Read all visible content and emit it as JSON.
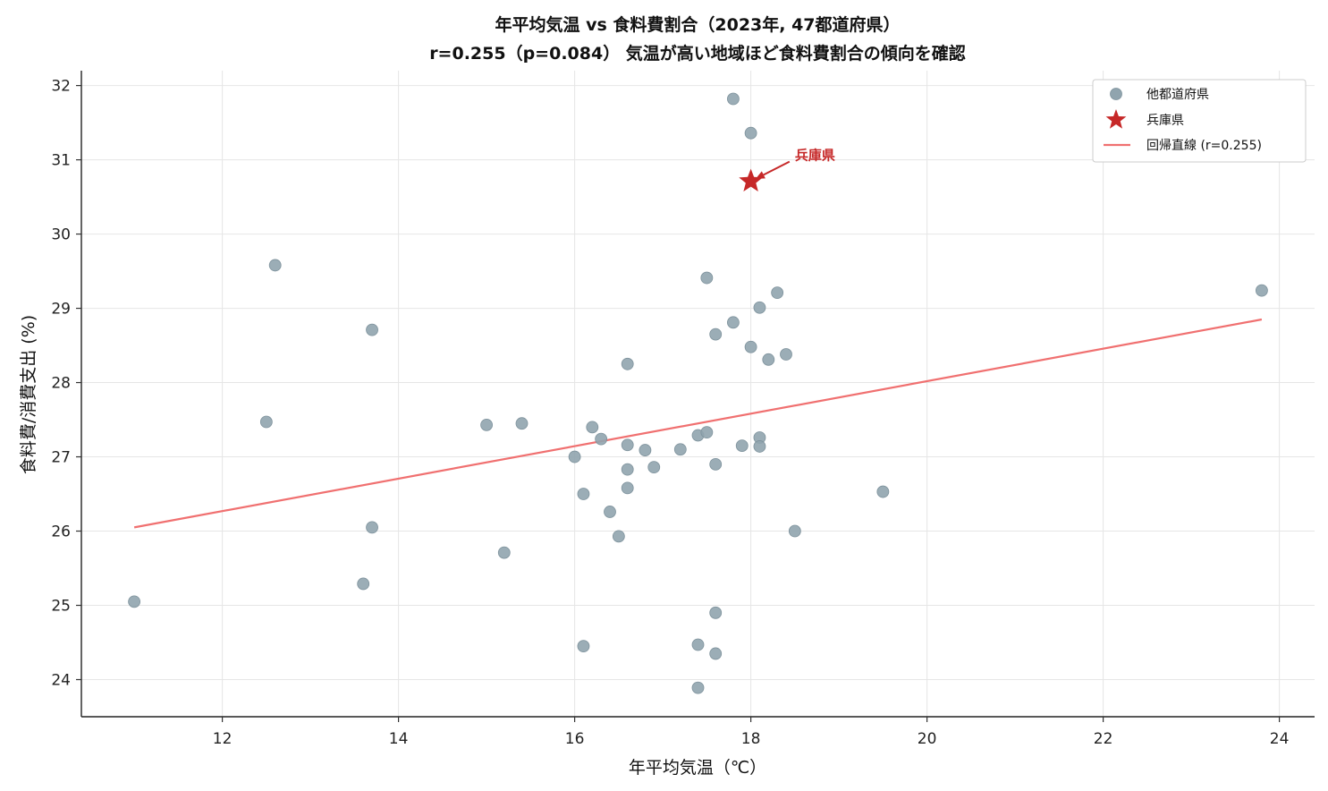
{
  "chart_data": {
    "type": "scatter",
    "title_line1": "年平均気温 vs 食料費割合（2023年, 47都道府県）",
    "title_line2": "r=0.255（p=0.084）    気温が高い地域ほど食料費割合の傾向を確認",
    "xlabel": "年平均気温（℃）",
    "ylabel": "食料費/消費支出 (%)",
    "xlim": [
      10.4,
      24.4
    ],
    "ylim": [
      23.5,
      32.2
    ],
    "xticks": [
      "12",
      "14",
      "16",
      "18",
      "20",
      "22",
      "24"
    ],
    "yticks": [
      "24",
      "25",
      "26",
      "27",
      "28",
      "29",
      "30",
      "31",
      "32"
    ],
    "grid": true,
    "legend_position": "top-right",
    "series": [
      {
        "name": "他都道府県",
        "kind": "points",
        "color": "#90a4ae",
        "points": [
          [
            11.0,
            25.05
          ],
          [
            12.5,
            27.47
          ],
          [
            12.6,
            29.58
          ],
          [
            13.6,
            25.29
          ],
          [
            13.7,
            28.71
          ],
          [
            13.7,
            26.05
          ],
          [
            15.0,
            27.43
          ],
          [
            15.2,
            25.71
          ],
          [
            15.4,
            27.45
          ],
          [
            16.0,
            27.0
          ],
          [
            16.1,
            26.5
          ],
          [
            16.1,
            24.45
          ],
          [
            16.2,
            27.4
          ],
          [
            16.3,
            27.24
          ],
          [
            16.4,
            26.26
          ],
          [
            16.5,
            25.93
          ],
          [
            16.6,
            28.25
          ],
          [
            16.6,
            27.16
          ],
          [
            16.6,
            26.83
          ],
          [
            16.6,
            26.58
          ],
          [
            16.8,
            27.09
          ],
          [
            16.9,
            26.86
          ],
          [
            17.2,
            27.1
          ],
          [
            17.4,
            27.29
          ],
          [
            17.4,
            24.47
          ],
          [
            17.4,
            23.89
          ],
          [
            17.5,
            29.41
          ],
          [
            17.5,
            27.33
          ],
          [
            17.6,
            28.65
          ],
          [
            17.6,
            26.9
          ],
          [
            17.6,
            24.9
          ],
          [
            17.6,
            24.35
          ],
          [
            17.8,
            31.82
          ],
          [
            17.8,
            28.81
          ],
          [
            17.9,
            27.15
          ],
          [
            18.0,
            31.36
          ],
          [
            18.0,
            28.48
          ],
          [
            18.1,
            29.01
          ],
          [
            18.1,
            27.26
          ],
          [
            18.1,
            27.14
          ],
          [
            18.2,
            28.31
          ],
          [
            18.3,
            29.21
          ],
          [
            18.4,
            28.38
          ],
          [
            18.5,
            26.0
          ],
          [
            19.5,
            26.53
          ],
          [
            23.8,
            29.24
          ]
        ]
      },
      {
        "name": "兵庫県",
        "kind": "highlight",
        "color": "#c62828",
        "points": [
          [
            18.0,
            30.71
          ]
        ]
      },
      {
        "name": "回帰直線 (r=0.255)",
        "kind": "line",
        "color": "#f07070",
        "points": [
          [
            11.0,
            26.05
          ],
          [
            23.8,
            28.85
          ]
        ]
      }
    ],
    "annotation": {
      "text": "兵庫県",
      "text_at": [
        18.5,
        31.0
      ],
      "arrow_to": [
        18.0,
        30.71
      ]
    }
  }
}
